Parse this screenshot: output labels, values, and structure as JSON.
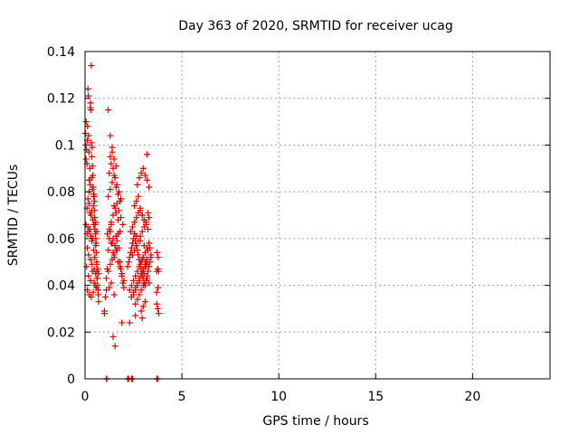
{
  "chart_data": {
    "type": "scatter",
    "title": "Day 363 of 2020, SRMTID for receiver ucag",
    "xlabel": "GPS time / hours",
    "ylabel": "SRMTID / TECUs",
    "xlim": [
      0,
      24
    ],
    "ylim": [
      0,
      0.14
    ],
    "xticks": [
      0,
      5,
      10,
      15,
      20
    ],
    "yticks": [
      0,
      0.02,
      0.04,
      0.06,
      0.08,
      0.1,
      0.12,
      0.14
    ],
    "xtick_labels": [
      "0",
      "5",
      "10",
      "15",
      "20"
    ],
    "ytick_labels": [
      "0",
      "0.02",
      "0.04",
      "0.06",
      "0.08",
      "0.1",
      "0.12",
      "0.14"
    ],
    "grid": true,
    "marker": "plus",
    "color": "#e00000",
    "series": [
      {
        "x": [
          0.02,
          0.03,
          0.05,
          0.06,
          0.08,
          0.1,
          0.12,
          0.13,
          0.15,
          0.17,
          0.18,
          0.2,
          0.22,
          0.23,
          0.25,
          0.27,
          0.28,
          0.3,
          0.32,
          0.33,
          0.35,
          0.37,
          0.38,
          0.4,
          0.42,
          0.43,
          0.45,
          0.47,
          0.48,
          0.5,
          0.52,
          0.53,
          0.55,
          0.57,
          0.58,
          0.6,
          0.62,
          0.63,
          0.65,
          0.67,
          0.68,
          0.7,
          0.05,
          0.1,
          0.15,
          0.2,
          0.25,
          0.3,
          0.35,
          0.4,
          0.45,
          0.5,
          0.55,
          0.6,
          0.65,
          0.7,
          0.08,
          0.18,
          0.28,
          0.38,
          0.48,
          0.58,
          0.12,
          0.22,
          0.32,
          0.42,
          0.52,
          0.62,
          0.1,
          0.15,
          0.2,
          0.25,
          0.3,
          0.35,
          0.4,
          0.45,
          0.5,
          0.55,
          0.6,
          0.22,
          0.27,
          0.33,
          0.38,
          0.44,
          0.48,
          0.12,
          0.18,
          0.28,
          0.36,
          0.47,
          0.55,
          1.0,
          1.05,
          1.1,
          1.15,
          1.2,
          1.25,
          1.3,
          1.35,
          1.4,
          1.45,
          1.5,
          1.55,
          1.6,
          1.65,
          1.7,
          1.75,
          1.8,
          1.85,
          1.9,
          1.95,
          2.0,
          1.1,
          1.2,
          1.3,
          1.4,
          1.5,
          1.6,
          1.7,
          1.8,
          1.9,
          2.0,
          1.15,
          1.25,
          1.35,
          1.45,
          1.55,
          1.65,
          1.75,
          1.85,
          1.95,
          1.2,
          1.3,
          1.4,
          1.5,
          1.6,
          1.7,
          1.8,
          1.25,
          1.35,
          1.45,
          1.55,
          1.65,
          1.75,
          1.85,
          1.3,
          1.4,
          1.5,
          1.6,
          1.7,
          1.8,
          1.35,
          1.45,
          1.55,
          1.65,
          1.2,
          1.3,
          1.4,
          1.5,
          1.6,
          1.0,
          1.5,
          1.9,
          1.45,
          1.55,
          1.25,
          1.35,
          2.2,
          2.25,
          2.3,
          2.35,
          2.4,
          2.45,
          2.5,
          2.55,
          2.6,
          2.65,
          2.7,
          2.75,
          2.8,
          2.85,
          2.9,
          2.95,
          3.0,
          3.05,
          3.1,
          3.15,
          3.2,
          3.25,
          3.3,
          3.35,
          3.4,
          2.3,
          2.4,
          2.5,
          2.6,
          2.7,
          2.8,
          2.9,
          3.0,
          3.1,
          3.2,
          3.3,
          2.35,
          2.45,
          2.55,
          2.65,
          2.75,
          2.85,
          2.95,
          3.05,
          3.15,
          3.25,
          2.4,
          2.5,
          2.6,
          2.7,
          2.8,
          2.9,
          3.0,
          3.1,
          3.2,
          2.45,
          2.55,
          2.65,
          2.75,
          2.85,
          2.95,
          3.05,
          3.15,
          2.5,
          2.6,
          2.7,
          2.8,
          2.9,
          3.0,
          3.1,
          3.2,
          2.55,
          2.65,
          2.75,
          2.85,
          2.95,
          3.05,
          3.15,
          2.6,
          2.7,
          2.8,
          2.9,
          3.0,
          2.7,
          2.8,
          2.9,
          3.0,
          3.1,
          3.2,
          3.3,
          2.65,
          2.85,
          3.05,
          3.25,
          2.75,
          2.95,
          3.15,
          2.9,
          3.0,
          3.1,
          2.3,
          2.6,
          2.95,
          3.2,
          3.25,
          3.3,
          3.35,
          3.4,
          3.1,
          3.15,
          3.05,
          3.2,
          3.3,
          3.7,
          3.75,
          3.8,
          3.7,
          3.75,
          3.8,
          3.72,
          3.78,
          3.7,
          3.76,
          1.1,
          1.12,
          2.2,
          2.25,
          2.4,
          2.45,
          3.7,
          3.75
        ],
        "y": [
          0.105,
          0.1,
          0.094,
          0.11,
          0.098,
          0.092,
          0.102,
          0.108,
          0.124,
          0.121,
          0.104,
          0.097,
          0.08,
          0.085,
          0.09,
          0.116,
          0.118,
          0.115,
          0.134,
          0.101,
          0.095,
          0.099,
          0.091,
          0.087,
          0.082,
          0.074,
          0.079,
          0.078,
          0.072,
          0.069,
          0.066,
          0.062,
          0.06,
          0.058,
          0.054,
          0.049,
          0.046,
          0.043,
          0.04,
          0.038,
          0.036,
          0.033,
          0.066,
          0.062,
          0.065,
          0.063,
          0.064,
          0.061,
          0.059,
          0.06,
          0.055,
          0.052,
          0.057,
          0.05,
          0.047,
          0.045,
          0.048,
          0.044,
          0.042,
          0.046,
          0.041,
          0.039,
          0.038,
          0.036,
          0.035,
          0.037,
          0.04,
          0.043,
          0.073,
          0.077,
          0.075,
          0.071,
          0.07,
          0.072,
          0.068,
          0.066,
          0.064,
          0.067,
          0.063,
          0.085,
          0.083,
          0.086,
          0.081,
          0.078,
          0.076,
          0.056,
          0.053,
          0.051,
          0.049,
          0.047,
          0.045,
          0.029,
          0.035,
          0.038,
          0.047,
          0.055,
          0.06,
          0.063,
          0.066,
          0.058,
          0.054,
          0.052,
          0.057,
          0.061,
          0.059,
          0.062,
          0.056,
          0.05,
          0.047,
          0.044,
          0.041,
          0.039,
          0.043,
          0.046,
          0.049,
          0.051,
          0.053,
          0.055,
          0.05,
          0.048,
          0.045,
          0.042,
          0.062,
          0.064,
          0.067,
          0.07,
          0.073,
          0.075,
          0.072,
          0.069,
          0.066,
          0.078,
          0.081,
          0.084,
          0.087,
          0.082,
          0.079,
          0.076,
          0.088,
          0.092,
          0.09,
          0.086,
          0.083,
          0.08,
          0.077,
          0.095,
          0.097,
          0.094,
          0.091,
          0.068,
          0.063,
          0.058,
          0.06,
          0.057,
          0.055,
          0.115,
          0.104,
          0.099,
          0.074,
          0.071,
          0.028,
          0.036,
          0.024,
          0.018,
          0.014,
          0.039,
          0.041,
          0.048,
          0.05,
          0.052,
          0.054,
          0.056,
          0.058,
          0.06,
          0.062,
          0.059,
          0.057,
          0.055,
          0.053,
          0.051,
          0.049,
          0.047,
          0.045,
          0.043,
          0.041,
          0.04,
          0.042,
          0.044,
          0.046,
          0.048,
          0.05,
          0.052,
          0.038,
          0.04,
          0.042,
          0.044,
          0.046,
          0.048,
          0.05,
          0.052,
          0.054,
          0.056,
          0.058,
          0.063,
          0.065,
          0.067,
          0.069,
          0.071,
          0.073,
          0.07,
          0.068,
          0.066,
          0.064,
          0.035,
          0.037,
          0.039,
          0.041,
          0.043,
          0.045,
          0.047,
          0.049,
          0.051,
          0.053,
          0.055,
          0.057,
          0.059,
          0.061,
          0.063,
          0.065,
          0.067,
          0.036,
          0.038,
          0.04,
          0.042,
          0.044,
          0.046,
          0.048,
          0.05,
          0.074,
          0.076,
          0.078,
          0.072,
          0.07,
          0.068,
          0.066,
          0.032,
          0.034,
          0.036,
          0.038,
          0.04,
          0.083,
          0.086,
          0.088,
          0.09,
          0.087,
          0.085,
          0.082,
          0.061,
          0.059,
          0.057,
          0.055,
          0.053,
          0.051,
          0.049,
          0.029,
          0.031,
          0.033,
          0.024,
          0.027,
          0.026,
          0.096,
          0.071,
          0.069,
          0.056,
          0.053,
          0.05,
          0.048,
          0.045,
          0.043,
          0.041,
          0.046,
          0.047,
          0.046,
          0.032,
          0.03,
          0.028,
          0.054,
          0.052,
          0.037,
          0.039,
          0.0,
          0.0,
          0.0,
          0.0,
          0.0,
          0.0,
          0.0,
          0.0
        ]
      }
    ]
  }
}
